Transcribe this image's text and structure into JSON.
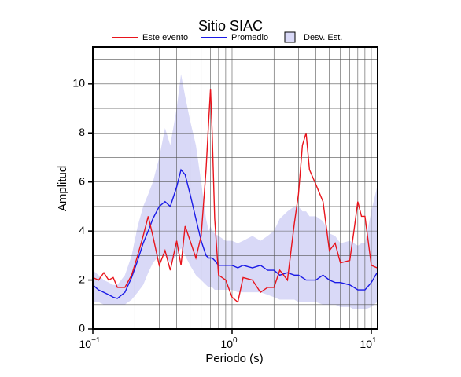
{
  "chart_data": {
    "type": "line",
    "title": "Sitio SIAC",
    "x_label": "Periodo (s)",
    "y_label": "Amplitud",
    "log_x": true,
    "grid": true,
    "xlim": [
      0.1,
      11.1
    ],
    "ylim": [
      0,
      11.5
    ],
    "xticks": [
      {
        "value": 0.1,
        "label": "10",
        "exponent": "−1"
      },
      {
        "value": 1,
        "label": "10",
        "exponent": "0"
      },
      {
        "value": 10,
        "label": "10",
        "exponent": "1"
      }
    ],
    "xminor": [
      0.2,
      0.3,
      0.4,
      0.5,
      0.6,
      0.7,
      0.8,
      0.9,
      2,
      3,
      4,
      5,
      6,
      7,
      8,
      9
    ],
    "yticks": [
      0,
      2,
      4,
      6,
      8,
      10
    ],
    "yminor": [
      1,
      3,
      5,
      7,
      9,
      11
    ],
    "x": [
      0.1,
      0.11,
      0.12,
      0.13,
      0.14,
      0.15,
      0.17,
      0.19,
      0.21,
      0.23,
      0.25,
      0.27,
      0.3,
      0.33,
      0.36,
      0.4,
      0.43,
      0.46,
      0.5,
      0.55,
      0.6,
      0.65,
      0.68,
      0.7,
      0.72,
      0.75,
      0.8,
      0.9,
      1.0,
      1.1,
      1.2,
      1.4,
      1.6,
      1.8,
      2.0,
      2.2,
      2.5,
      2.8,
      3.0,
      3.2,
      3.4,
      3.6,
      4.0,
      4.5,
      5,
      5.5,
      6,
      7,
      7.5,
      8,
      8.5,
      9,
      10,
      11
    ],
    "series": [
      {
        "name": "Este evento",
        "color": "#e8141c",
        "values": [
          2.1,
          2.0,
          2.3,
          2.0,
          2.1,
          1.7,
          1.7,
          2.2,
          3.0,
          3.8,
          4.6,
          3.8,
          2.6,
          3.2,
          2.4,
          3.6,
          2.6,
          4.2,
          3.6,
          2.9,
          3.8,
          6.5,
          8.5,
          9.8,
          8.0,
          4.5,
          2.2,
          2.0,
          1.3,
          1.1,
          2.1,
          2.0,
          1.5,
          1.7,
          1.7,
          2.4,
          2.0,
          4.3,
          5.5,
          7.5,
          8.0,
          6.5,
          5.9,
          5.2,
          3.2,
          3.5,
          2.7,
          2.8,
          4.0,
          5.2,
          4.6,
          4.6,
          2.6,
          2.5
        ]
      },
      {
        "name": "Promedio",
        "color": "#1a1ae6",
        "values": [
          1.8,
          1.6,
          1.5,
          1.4,
          1.3,
          1.25,
          1.5,
          2.1,
          2.8,
          3.5,
          4.0,
          4.5,
          5.0,
          5.2,
          5.0,
          5.8,
          6.5,
          6.3,
          5.5,
          4.5,
          3.6,
          3.0,
          2.9,
          2.9,
          2.9,
          2.8,
          2.6,
          2.6,
          2.6,
          2.5,
          2.6,
          2.5,
          2.6,
          2.4,
          2.4,
          2.2,
          2.3,
          2.2,
          2.2,
          2.1,
          2.0,
          2.0,
          2.0,
          2.2,
          2.0,
          1.9,
          1.9,
          1.8,
          1.7,
          1.6,
          1.6,
          1.6,
          1.9,
          2.3
        ]
      }
    ],
    "band": {
      "name": "Desv. Est.",
      "color": "#d9d9f7",
      "upper": [
        2.4,
        2.2,
        2.0,
        1.9,
        1.8,
        1.8,
        2.2,
        3.0,
        4.2,
        5.0,
        5.5,
        6.0,
        7.0,
        8.2,
        7.5,
        9.0,
        10.4,
        9.5,
        8.5,
        7.5,
        6.0,
        4.5,
        4.0,
        4.2,
        4.0,
        3.9,
        3.8,
        3.6,
        3.6,
        3.5,
        3.6,
        3.8,
        3.6,
        3.8,
        4.0,
        4.5,
        4.8,
        5.0,
        5.0,
        4.8,
        4.8,
        4.6,
        4.6,
        4.4,
        3.9,
        3.8,
        3.5,
        3.6,
        3.5,
        3.4,
        3.5,
        3.5,
        4.8,
        5.8
      ],
      "lower": [
        1.1,
        1.1,
        1.0,
        1.0,
        1.0,
        1.0,
        1.0,
        1.2,
        1.5,
        1.8,
        2.3,
        2.7,
        3.0,
        3.0,
        2.7,
        3.0,
        3.3,
        3.0,
        2.6,
        2.2,
        2.0,
        1.8,
        1.7,
        1.7,
        1.7,
        1.6,
        1.6,
        1.6,
        1.6,
        1.5,
        1.5,
        1.5,
        1.5,
        1.4,
        1.3,
        1.2,
        1.2,
        1.2,
        1.1,
        1.1,
        1.1,
        1.1,
        1.1,
        1.0,
        1.0,
        1.0,
        0.9,
        0.9,
        0.8,
        0.8,
        0.8,
        0.8,
        0.9,
        1.1
      ]
    }
  }
}
